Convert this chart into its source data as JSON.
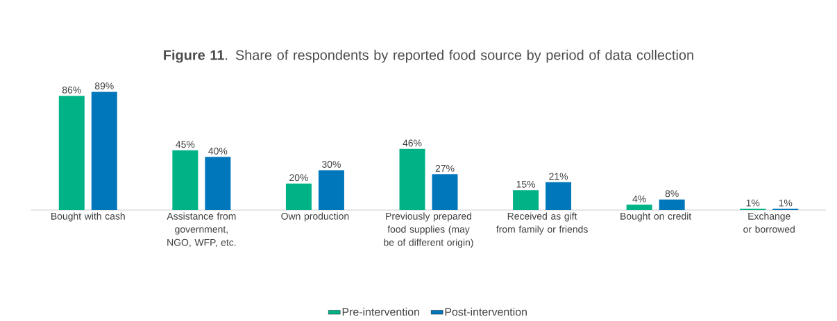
{
  "chart_data": {
    "type": "bar",
    "title": "**Figure 11**. Share of respondents by reported food source by period of data collection",
    "categories": [
      "Bought with cash",
      "Assistance from government, NGO, WFP, etc.",
      "Own production",
      "Previously prepared food supplies (may be of different origin)",
      "Received as gift from family or friends",
      "Bought on credit",
      "Exchange or borrowed"
    ],
    "series": [
      {
        "name": "Pre-intervention",
        "color": "#00b386",
        "values": [
          86,
          45,
          20,
          46,
          15,
          4,
          1
        ],
        "value_labels": [
          "86%",
          "45%",
          "20%",
          "46%",
          "15%",
          "4%",
          "1%"
        ]
      },
      {
        "name": "Post-intervention",
        "color": "#0077bb",
        "values": [
          89,
          40,
          30,
          27,
          21,
          8,
          1
        ],
        "value_labels": [
          "89%",
          "40%",
          "30%",
          "27%",
          "21%",
          "8%",
          "1%"
        ]
      }
    ],
    "legend": "bottom",
    "tick_labels": "x"
  }
}
